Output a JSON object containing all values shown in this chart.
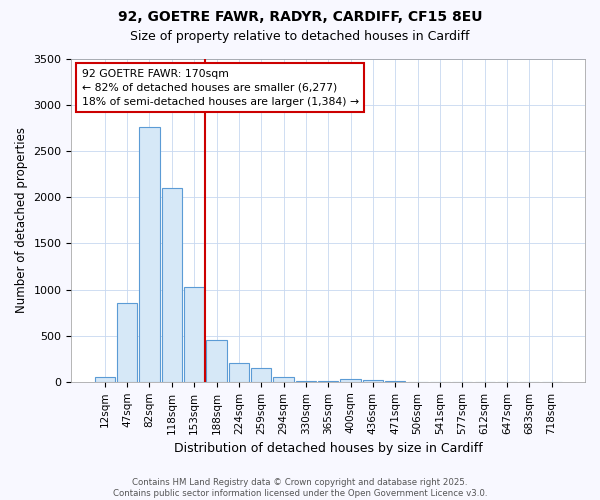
{
  "title1": "92, GOETRE FAWR, RADYR, CARDIFF, CF15 8EU",
  "title2": "Size of property relative to detached houses in Cardiff",
  "xlabel": "Distribution of detached houses by size in Cardiff",
  "ylabel": "Number of detached properties",
  "bar_labels": [
    "12sqm",
    "47sqm",
    "82sqm",
    "118sqm",
    "153sqm",
    "188sqm",
    "224sqm",
    "259sqm",
    "294sqm",
    "330sqm",
    "365sqm",
    "400sqm",
    "436sqm",
    "471sqm",
    "506sqm",
    "541sqm",
    "577sqm",
    "612sqm",
    "647sqm",
    "683sqm",
    "718sqm"
  ],
  "bar_values": [
    50,
    850,
    2760,
    2100,
    1030,
    450,
    200,
    150,
    50,
    5,
    5,
    30,
    15,
    5,
    2,
    1,
    1,
    1,
    1,
    1,
    1
  ],
  "bar_color": "#d6e8f7",
  "bar_edgecolor": "#5b9bd5",
  "marker_color": "#cc0000",
  "annotation_title": "92 GOETRE FAWR: 170sqm",
  "annotation_line1": "← 82% of detached houses are smaller (6,277)",
  "annotation_line2": "18% of semi-detached houses are larger (1,384) →",
  "annotation_box_edgecolor": "#cc0000",
  "ylim": [
    0,
    3500
  ],
  "yticks": [
    0,
    500,
    1000,
    1500,
    2000,
    2500,
    3000,
    3500
  ],
  "footer1": "Contains HM Land Registry data © Crown copyright and database right 2025.",
  "footer2": "Contains public sector information licensed under the Open Government Licence v3.0.",
  "bg_color": "#f8f8ff",
  "plot_bg_color": "#ffffff",
  "grid_color": "#c8d8f0"
}
